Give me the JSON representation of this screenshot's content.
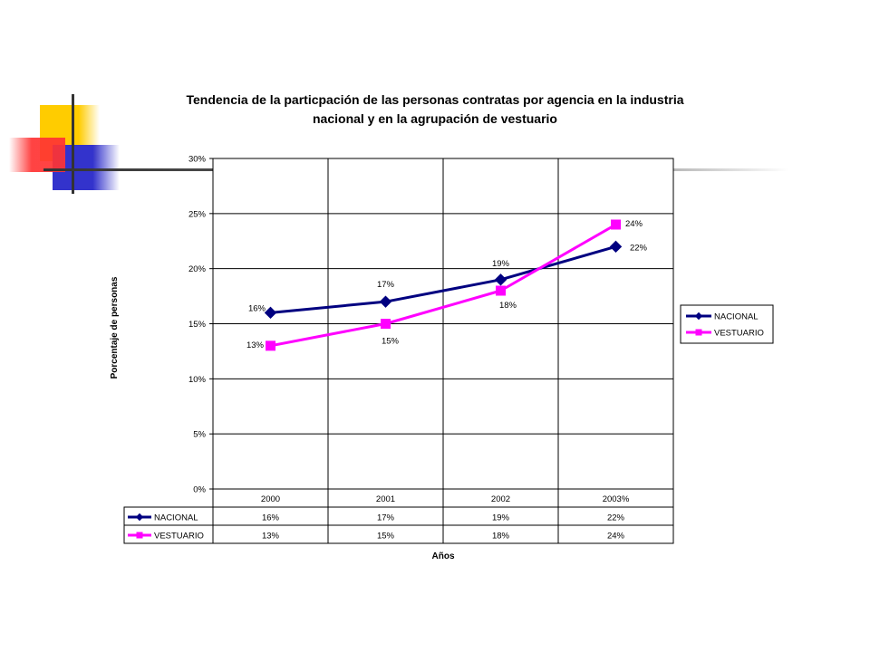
{
  "slide": {
    "decor_colors": {
      "yellow": "#ffcc00",
      "red": "#ff3333",
      "blue": "#3333cc",
      "line": "#333333"
    }
  },
  "chart_data": {
    "type": "line",
    "title_lines": [
      "Tendencia de la particpación de las personas contratas por agencia en la industria",
      "nacional y en la agrupación de vestuario"
    ],
    "xlabel": "Años",
    "ylabel": "Porcentaje de personas",
    "categories": [
      "2000",
      "2001",
      "2002",
      "2003%"
    ],
    "ylim": [
      0,
      30
    ],
    "yticks": [
      "0%",
      "5%",
      "10%",
      "15%",
      "20%",
      "25%",
      "30%"
    ],
    "grid": true,
    "legend_position": "right",
    "series": [
      {
        "name": "NACIONAL",
        "values": [
          16,
          17,
          19,
          22
        ],
        "labels": [
          "16%",
          "17%",
          "19%",
          "22%"
        ],
        "color": "#000080",
        "marker": "diamond"
      },
      {
        "name": "VESTUARIO",
        "values": [
          13,
          15,
          18,
          24
        ],
        "labels": [
          "13%",
          "15%",
          "18%",
          "24%"
        ],
        "color": "#ff00ff",
        "marker": "square"
      }
    ],
    "data_table": {
      "rows": [
        {
          "series": "NACIONAL",
          "cells": [
            "16%",
            "17%",
            "19%",
            "22%"
          ]
        },
        {
          "series": "VESTUARIO",
          "cells": [
            "13%",
            "15%",
            "18%",
            "24%"
          ]
        }
      ]
    }
  }
}
